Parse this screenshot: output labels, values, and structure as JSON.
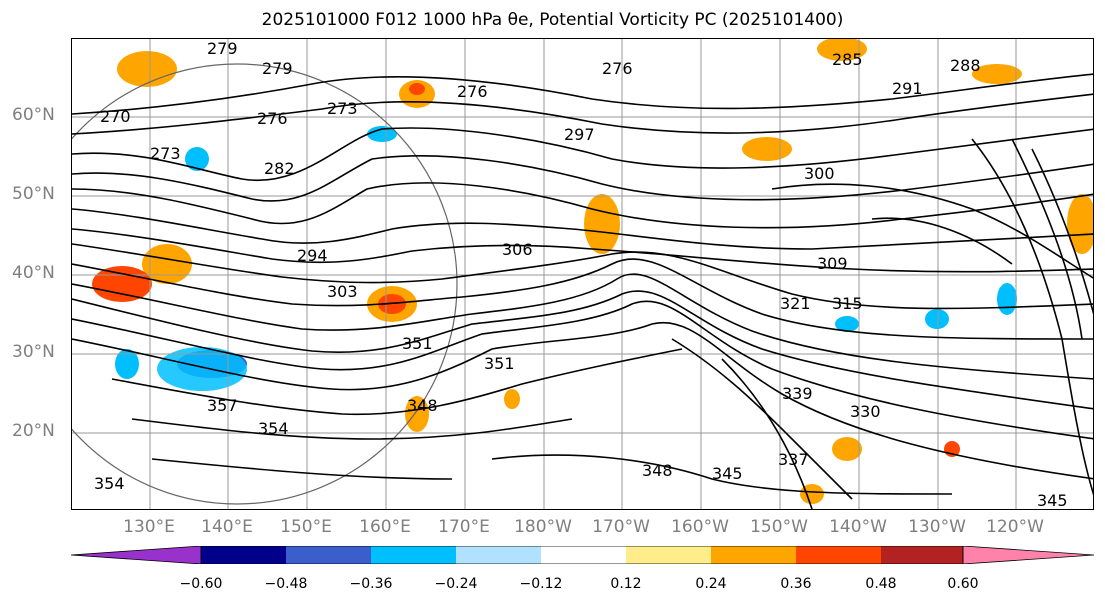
{
  "title": "2025101000 F012 1000 hPa θe, Potential Vorticity PC (2025101400)",
  "lat_labels": [
    "60°N",
    "50°N",
    "40°N",
    "30°N",
    "20°N"
  ],
  "lon_labels": [
    "130°E",
    "140°E",
    "150°E",
    "160°E",
    "170°E",
    "180°W",
    "170°W",
    "160°W",
    "150°W",
    "140°W",
    "130°W",
    "120°W"
  ],
  "contour_labels": [
    "279",
    "279",
    "276",
    "270",
    "276",
    "273",
    "273",
    "282",
    "276",
    "297",
    "291",
    "288",
    "285",
    "300",
    "294",
    "306",
    "309",
    "303",
    "315",
    "321",
    "351",
    "351",
    "357",
    "354",
    "348",
    "339",
    "330",
    "348",
    "345",
    "345",
    "354",
    "337"
  ],
  "colorbar": {
    "ticks": [
      "−0.60",
      "−0.48",
      "−0.36",
      "−0.24",
      "−0.12",
      "0.12",
      "0.24",
      "0.36",
      "0.48",
      "0.60"
    ],
    "colors": [
      "#9932cc",
      "#00008b",
      "#3a5fcd",
      "#00bfff",
      "#b0e2ff",
      "#ffffff",
      "#ffec8b",
      "#ffa500",
      "#ff4500",
      "#b22222",
      "#ff82ab"
    ]
  },
  "colors": {
    "pos_low": "#ffec8b",
    "pos_mid": "#ffa500",
    "pos_high": "#ff4500",
    "neg_low": "#b0e2ff",
    "neg_mid": "#00bfff",
    "neg_high": "#3a5fcd"
  }
}
